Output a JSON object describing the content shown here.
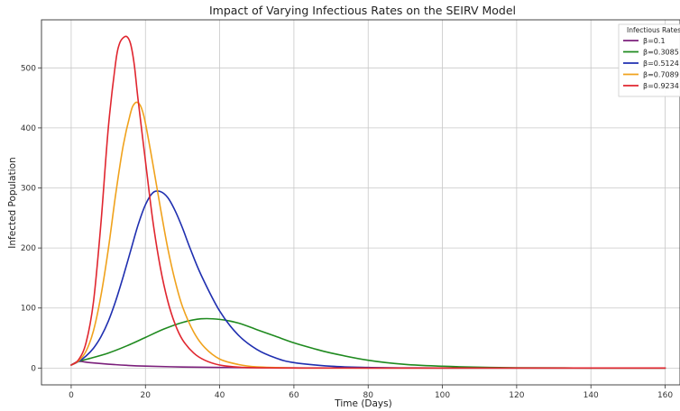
{
  "chart_data": {
    "type": "line",
    "title": "Impact of Varying Infectious Rates on the SEIRV Model",
    "xlabel": "Time (Days)",
    "ylabel": "Infected Population",
    "xlim": [
      -8,
      164
    ],
    "ylim": [
      -28,
      580
    ],
    "xticks": [
      0,
      20,
      40,
      60,
      80,
      100,
      120,
      140,
      160
    ],
    "yticks": [
      0,
      100,
      200,
      300,
      400,
      500
    ],
    "grid": true,
    "legend": {
      "title": "Infectious Rates",
      "placement": "top-right"
    },
    "series": [
      {
        "name": "β=0.1",
        "color": "#7b1f7b",
        "x": [
          0,
          2,
          5,
          10,
          15,
          20,
          30,
          40,
          50,
          60,
          80,
          100,
          120,
          140,
          160
        ],
        "y": [
          5,
          11,
          9,
          6.5,
          4.5,
          3.2,
          1.8,
          1.0,
          0.6,
          0.3,
          0.1,
          0,
          0,
          0,
          0
        ]
      },
      {
        "name": "β=0.3085",
        "color": "#1f8a1f",
        "x": [
          0,
          2,
          5,
          10,
          15,
          20,
          25,
          30,
          35,
          40,
          45,
          50,
          55,
          60,
          65,
          70,
          80,
          90,
          100,
          110,
          120,
          140,
          160
        ],
        "y": [
          5,
          11,
          16,
          25,
          37,
          51,
          65,
          76,
          82,
          81,
          75,
          64,
          53,
          42,
          33,
          25,
          13,
          6,
          3,
          1.3,
          0.5,
          0.1,
          0
        ]
      },
      {
        "name": "β=0.5124",
        "color": "#1f2fb0",
        "x": [
          0,
          2,
          4,
          6,
          8,
          10,
          12,
          14,
          16,
          18,
          20,
          22,
          24,
          26,
          28,
          30,
          32,
          35,
          40,
          45,
          50,
          55,
          60,
          70,
          80,
          90,
          100,
          120,
          160
        ],
        "y": [
          5,
          11,
          20,
          33,
          52,
          78,
          112,
          152,
          195,
          238,
          272,
          292,
          294,
          284,
          262,
          233,
          200,
          155,
          95,
          55,
          31,
          17,
          9,
          3,
          1,
          0.3,
          0.1,
          0,
          0
        ]
      },
      {
        "name": "β=0.7089",
        "color": "#f0a21c",
        "x": [
          0,
          2,
          4,
          6,
          8,
          10,
          12,
          14,
          16,
          17,
          18,
          19,
          20,
          22,
          24,
          26,
          28,
          30,
          33,
          36,
          40,
          45,
          50,
          60,
          70,
          80,
          100,
          160
        ],
        "y": [
          5,
          12,
          28,
          62,
          120,
          198,
          290,
          370,
          425,
          440,
          442,
          432,
          408,
          340,
          268,
          200,
          145,
          102,
          60,
          34,
          15,
          6,
          2,
          0.3,
          0,
          0,
          0,
          0
        ],
        "peak_x": 18,
        "peak_y": 442
      },
      {
        "name": "β=0.9234",
        "color": "#e0262f",
        "x": [
          0,
          2,
          4,
          6,
          8,
          10,
          12,
          13,
          14,
          15,
          16,
          17,
          18,
          20,
          22,
          24,
          26,
          28,
          30,
          33,
          36,
          40,
          45,
          50,
          60,
          70,
          80,
          100,
          160
        ],
        "y": [
          5,
          14,
          42,
          110,
          240,
          400,
          510,
          540,
          550,
          552,
          540,
          505,
          448,
          345,
          245,
          168,
          112,
          73,
          47,
          25,
          13,
          5,
          1.5,
          0.5,
          0,
          0,
          0,
          0,
          0
        ],
        "peak_x": 15,
        "peak_y": 552
      }
    ]
  }
}
